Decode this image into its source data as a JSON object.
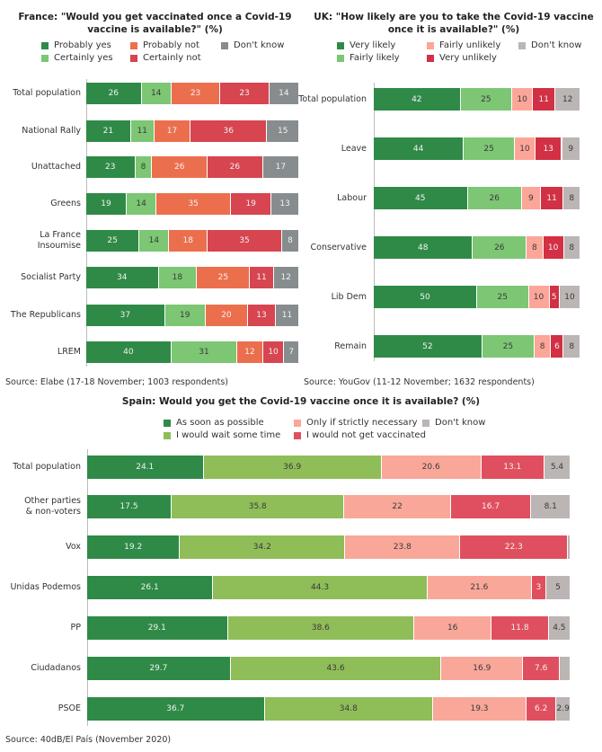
{
  "colors": {
    "fr": [
      "#2f8a47",
      "#7cc674",
      "#ec6f4d",
      "#d64550",
      "#878c8f"
    ],
    "uk": [
      "#2f8a47",
      "#7cc674",
      "#fba698",
      "#d23044",
      "#bbb5b4"
    ],
    "es": [
      "#2f8a47",
      "#8fbd58",
      "#f9a799",
      "#e04f5f",
      "#bbb5b4"
    ]
  },
  "chart_data": [
    {
      "id": "france",
      "type": "bar",
      "orientation": "horizontal-stacked",
      "title": "France: \"Would you get vaccinated once a Covid-19 vaccine is available?\" (%)",
      "legend": [
        "Probably yes",
        "Probably not",
        "Don't know",
        "Certainly yes",
        "Certainly not"
      ],
      "categories": [
        "Total population",
        "National Rally",
        "Unattached",
        "Greens",
        "La France Insoumise",
        "Socialist Party",
        "The Republicans",
        "LREM"
      ],
      "series": [
        {
          "name": "Probably yes",
          "values": [
            26,
            21,
            23,
            19,
            25,
            34,
            37,
            40
          ]
        },
        {
          "name": "Certainly yes",
          "values": [
            14,
            11,
            8,
            14,
            14,
            18,
            19,
            31
          ]
        },
        {
          "name": "Probably not",
          "values": [
            23,
            17,
            26,
            35,
            18,
            25,
            20,
            12
          ]
        },
        {
          "name": "Certainly not",
          "values": [
            23,
            36,
            26,
            19,
            35,
            11,
            13,
            10
          ]
        },
        {
          "name": "Don't know",
          "values": [
            14,
            15,
            17,
            13,
            8,
            12,
            11,
            7
          ]
        }
      ],
      "source": "Source: Elabe (17-18 November; 1003 respondents)"
    },
    {
      "id": "uk",
      "type": "bar",
      "orientation": "horizontal-stacked",
      "title": "UK: \"How likely are you to take the Covid-19 vaccine once it is available?\" (%)",
      "legend": [
        "Very likely",
        "Fairly unlikely",
        "Don't know",
        "Fairly likely",
        "Very unlikely"
      ],
      "categories": [
        "Total population",
        "Leave",
        "Labour",
        "Conservative",
        "Lib Dem",
        "Remain"
      ],
      "series": [
        {
          "name": "Very likely",
          "values": [
            42,
            44,
            45,
            48,
            50,
            52
          ]
        },
        {
          "name": "Fairly likely",
          "values": [
            25,
            25,
            26,
            26,
            25,
            25
          ]
        },
        {
          "name": "Fairly unlikely",
          "values": [
            10,
            10,
            9,
            8,
            10,
            8
          ]
        },
        {
          "name": "Very unlikely",
          "values": [
            11,
            13,
            11,
            10,
            5,
            6
          ]
        },
        {
          "name": "Don't know",
          "values": [
            12,
            9,
            8,
            8,
            10,
            8
          ]
        }
      ],
      "source": "Source: YouGov (11-12 November; 1632 respondents)"
    },
    {
      "id": "spain",
      "type": "bar",
      "orientation": "horizontal-stacked",
      "title": "Spain: Would you get the Covid-19 vaccine once it is available? (%)",
      "legend": [
        "As soon as possible",
        "Only if strictly necessary",
        "Don't know",
        "I would wait some time",
        "I would not get vaccinated"
      ],
      "categories": [
        "Total population",
        "Other parties & non-voters",
        "Vox",
        "Unidas Podemos",
        "PP",
        "Ciudadanos",
        "PSOE"
      ],
      "series": [
        {
          "name": "As soon as possible",
          "values": [
            24.1,
            17.5,
            19.2,
            26.1,
            29.1,
            29.7,
            36.7
          ]
        },
        {
          "name": "I would wait some time",
          "values": [
            36.9,
            35.8,
            34.2,
            44.3,
            38.6,
            43.6,
            34.8
          ]
        },
        {
          "name": "Only if strictly necessary",
          "values": [
            20.6,
            22,
            23.8,
            21.6,
            16,
            16.9,
            19.3
          ]
        },
        {
          "name": "I would not get vaccinated",
          "values": [
            13.1,
            16.7,
            22.3,
            3,
            11.8,
            7.6,
            6.2
          ]
        },
        {
          "name": "Don't know",
          "values": [
            5.4,
            8.1,
            0.5,
            5,
            4.5,
            2.2,
            2.9
          ]
        }
      ],
      "labels": [
        [
          "24.1",
          "36.9",
          "20.6",
          "13.1",
          "5.4"
        ],
        [
          "17.5",
          "35.8",
          "22",
          "16.7",
          "8.1"
        ],
        [
          "19.2",
          "34.2",
          "23.8",
          "22.3",
          ""
        ],
        [
          "26.1",
          "44.3",
          "21.6",
          "3",
          "5"
        ],
        [
          "29.1",
          "38.6",
          "16",
          "11.8",
          "4.5"
        ],
        [
          "29.7",
          "43.6",
          "16.9",
          "7.6",
          ""
        ],
        [
          "36.7",
          "34.8",
          "19.3",
          "6.2",
          "2.9"
        ]
      ],
      "source": "Source: 40dB/El País (November 2020)"
    }
  ]
}
